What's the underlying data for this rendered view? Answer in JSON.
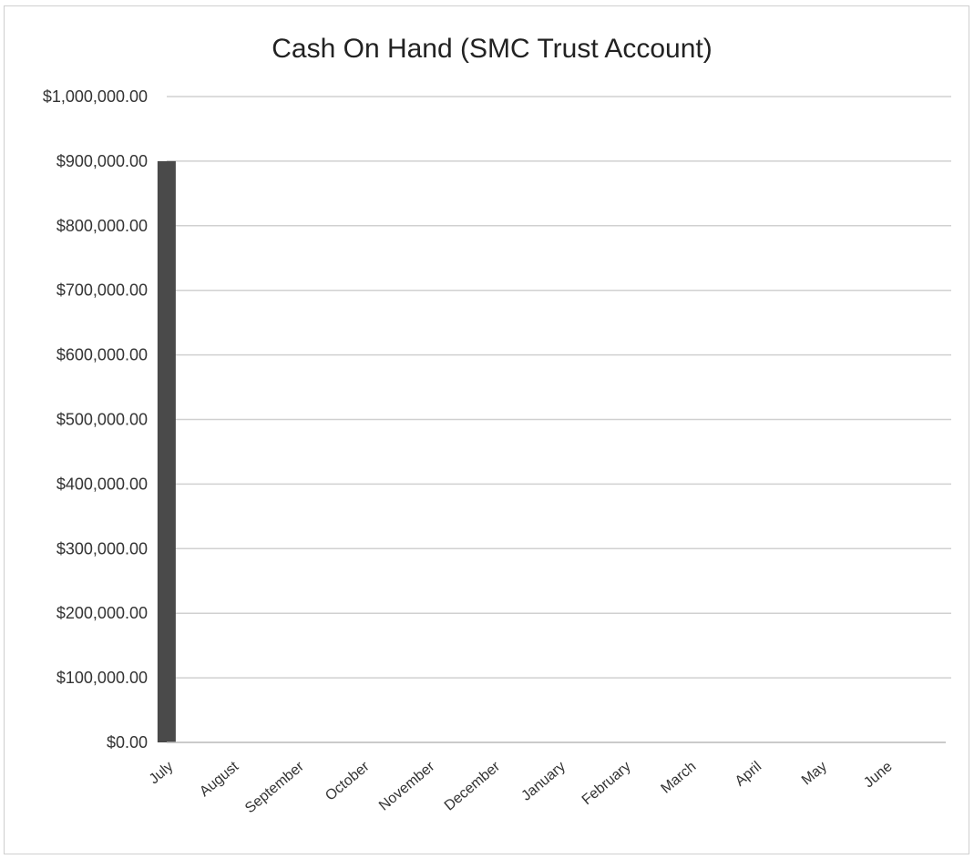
{
  "chart_data": {
    "type": "bar",
    "title": "Cash On Hand (SMC Trust Account)",
    "xlabel": "",
    "ylabel": "",
    "categories": [
      "July",
      "August",
      "September",
      "October",
      "November",
      "December",
      "January",
      "February",
      "March",
      "April",
      "May",
      "June"
    ],
    "values": [
      900000,
      0,
      0,
      0,
      0,
      0,
      0,
      0,
      0,
      0,
      0,
      0
    ],
    "ylim": [
      0,
      1000000
    ],
    "yticks": [
      0,
      100000,
      200000,
      300000,
      400000,
      500000,
      600000,
      700000,
      800000,
      900000,
      1000000
    ],
    "ytick_labels": [
      "$0.00",
      "$100,000.00",
      "$200,000.00",
      "$300,000.00",
      "$400,000.00",
      "$500,000.00",
      "$600,000.00",
      "$700,000.00",
      "$800,000.00",
      "$900,000.00",
      "$1,000,000.00"
    ],
    "grid": true,
    "legend": "none",
    "bar_color": "#4a4a4a",
    "grid_color": "#d0d0d0"
  }
}
